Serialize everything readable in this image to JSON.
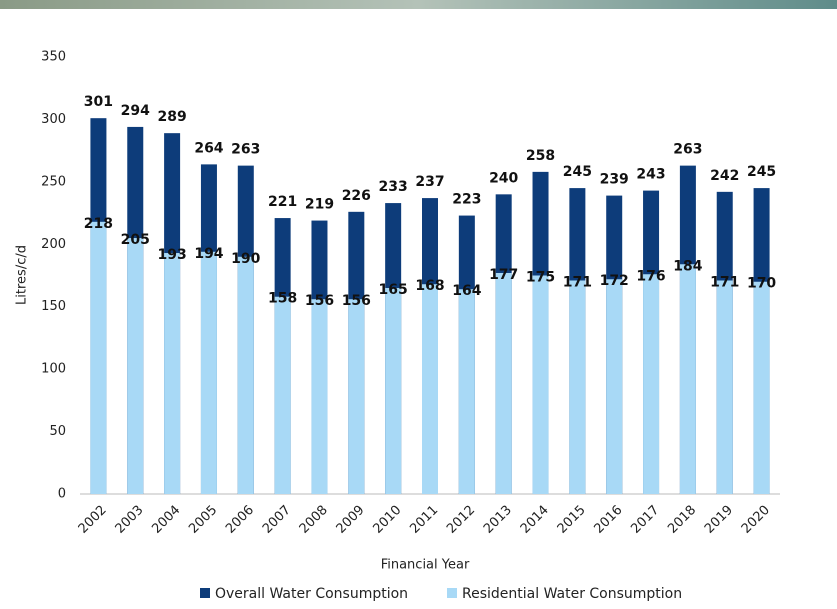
{
  "chart_data": {
    "type": "bar",
    "x_label": "Financial Year",
    "y_label": "Litres/c/d",
    "categories": [
      "2002",
      "2003",
      "2004",
      "2005",
      "2006",
      "2007",
      "2008",
      "2009",
      "2010",
      "2011",
      "2012",
      "2013",
      "2014",
      "2015",
      "2016",
      "2017",
      "2018",
      "2019",
      "2020"
    ],
    "series": [
      {
        "name": "Overall Water Consumption",
        "color": "#0d3c7a",
        "values": [
          301,
          294,
          289,
          264,
          263,
          221,
          219,
          226,
          233,
          237,
          223,
          240,
          258,
          245,
          239,
          243,
          263,
          242,
          245
        ]
      },
      {
        "name": "Residential Water Consumption",
        "color": "#a8d9f6",
        "values": [
          218,
          205,
          193,
          194,
          190,
          158,
          156,
          156,
          165,
          168,
          164,
          177,
          175,
          171,
          172,
          176,
          184,
          171,
          170
        ]
      }
    ],
    "ylim": [
      0,
      350
    ],
    "yticks": [
      0,
      50,
      100,
      150,
      200,
      250,
      300,
      350
    ],
    "grid": false,
    "legend": "bottom"
  }
}
